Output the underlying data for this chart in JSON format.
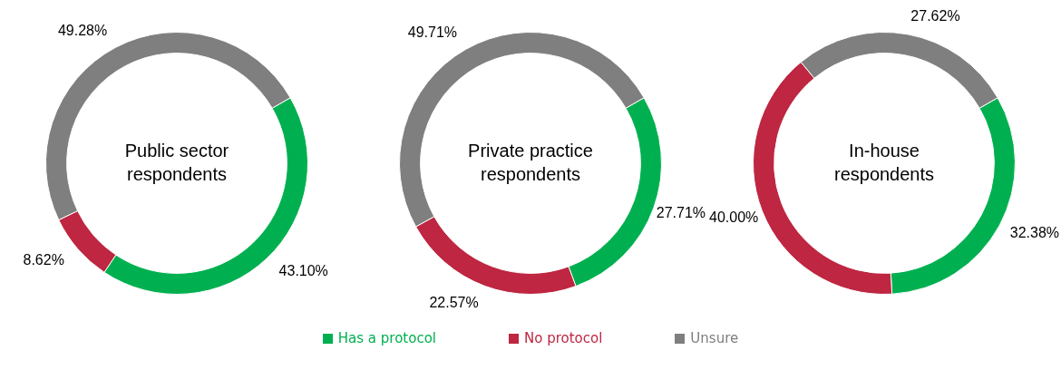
{
  "chart_data": [
    {
      "type": "donut",
      "title": "Public sector respondents",
      "categories": [
        "Has a protocol",
        "No protocol",
        "Unsure"
      ],
      "values": [
        43.1,
        8.62,
        49.28
      ],
      "value_labels": [
        "43.10%",
        "8.62%",
        "49.28%"
      ],
      "colors": [
        "#00b050",
        "#be2641",
        "#7f7f7f"
      ],
      "legend": "bottom"
    },
    {
      "type": "donut",
      "title": "Private practice respondents",
      "values": [
        27.71,
        22.57,
        49.71
      ],
      "value_labels": [
        "27.71%",
        "22.57%",
        "49.71%"
      ],
      "colors": [
        "#00b050",
        "#be2641",
        "#7f7f7f"
      ]
    },
    {
      "type": "donut",
      "title": "In-house respondents",
      "values": [
        32.38,
        40.0,
        27.62
      ],
      "value_labels": [
        "32.38%",
        "40.00%",
        "27.62%"
      ],
      "colors": [
        "#00b050",
        "#be2641",
        "#7f7f7f"
      ]
    }
  ]
}
